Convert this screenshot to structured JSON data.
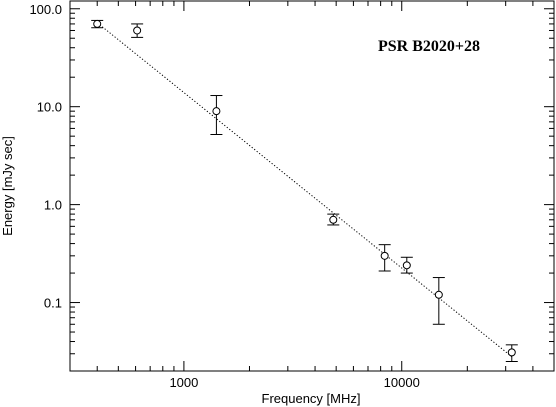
{
  "chart_data": {
    "type": "scatter",
    "title": "PSR B2020+28",
    "xlabel": "Frequency [MHz]",
    "ylabel": "Energy [mJy sec]",
    "xscale": "log",
    "yscale": "log",
    "xlim": [
      300,
      50000
    ],
    "ylim": [
      0.02,
      120
    ],
    "x_tick_labels": [
      {
        "value": 1000,
        "label": "1000"
      },
      {
        "value": 10000,
        "label": "10000"
      }
    ],
    "y_tick_labels": [
      {
        "value": 100,
        "label": "100.0"
      },
      {
        "value": 10,
        "label": "10.0"
      },
      {
        "value": 1,
        "label": "1.0"
      },
      {
        "value": 0.1,
        "label": "0.1"
      }
    ],
    "grid": false,
    "legend": "none",
    "series": [
      {
        "marker": "open-circle",
        "points": [
          {
            "x": 400,
            "y": 70,
            "ylo": 64,
            "yhi": 76
          },
          {
            "x": 610,
            "y": 60,
            "ylo": 51,
            "yhi": 70
          },
          {
            "x": 1410,
            "y": 9.0,
            "ylo": 5.2,
            "yhi": 13
          },
          {
            "x": 4850,
            "y": 0.7,
            "ylo": 0.62,
            "yhi": 0.8
          },
          {
            "x": 8350,
            "y": 0.3,
            "ylo": 0.21,
            "yhi": 0.39
          },
          {
            "x": 10550,
            "y": 0.24,
            "ylo": 0.2,
            "yhi": 0.29
          },
          {
            "x": 14800,
            "y": 0.12,
            "ylo": 0.06,
            "yhi": 0.18
          },
          {
            "x": 32000,
            "y": 0.031,
            "ylo": 0.025,
            "yhi": 0.037
          }
        ]
      }
    ],
    "fit_line": {
      "style": "dotted",
      "x": [
        400,
        32000
      ],
      "y": [
        72,
        0.028
      ]
    },
    "colors": {
      "axis": "#000000",
      "marker": "#000000",
      "background": "#ffffff"
    }
  }
}
